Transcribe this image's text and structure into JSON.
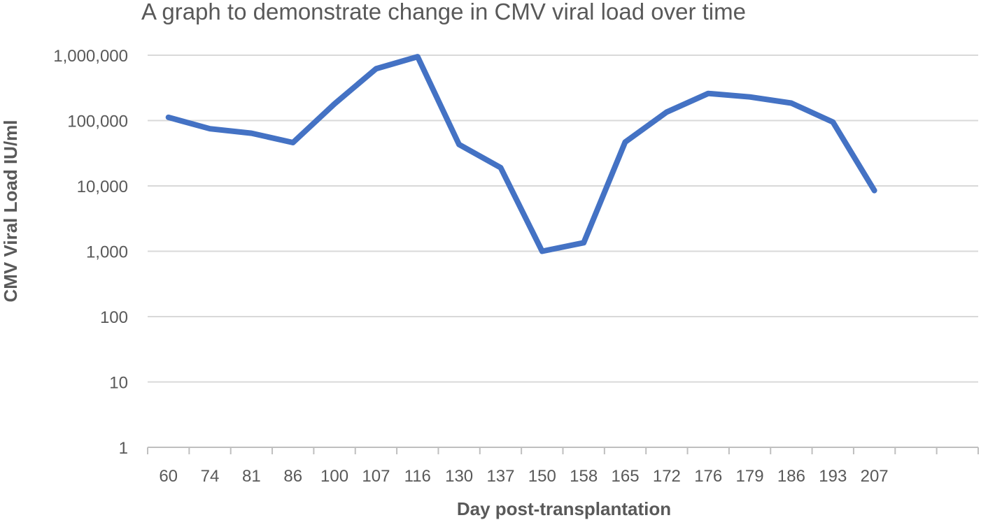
{
  "chart_data": {
    "type": "line",
    "title": "A graph to demonstrate change in CMV viral load over time",
    "xlabel": "Day post-transplantation",
    "ylabel": "CMV Viral Load IU/ml",
    "yscale": "log",
    "ylim": [
      1,
      1000000
    ],
    "ytick_labels": [
      "1",
      "10",
      "100",
      "1,000",
      "10,000",
      "100,000",
      "1,000,000"
    ],
    "ytick_values": [
      1,
      10,
      100,
      1000,
      10000,
      100000,
      1000000
    ],
    "categories": [
      "60",
      "74",
      "81",
      "86",
      "100",
      "107",
      "116",
      "130",
      "137",
      "150",
      "158",
      "165",
      "172",
      "176",
      "179",
      "186",
      "193",
      "207"
    ],
    "empty_category_slots_after": 2,
    "series": [
      {
        "values": [
          112000,
          75000,
          64000,
          46000,
          180000,
          620000,
          950000,
          43000,
          19000,
          1000,
          1350,
          47000,
          135000,
          260000,
          230000,
          185000,
          95000,
          8500
        ]
      }
    ],
    "grid": true,
    "legend": "none",
    "colors": {
      "line": "#4472C4",
      "grid": "#D9D9D9",
      "text": "#595959"
    }
  }
}
